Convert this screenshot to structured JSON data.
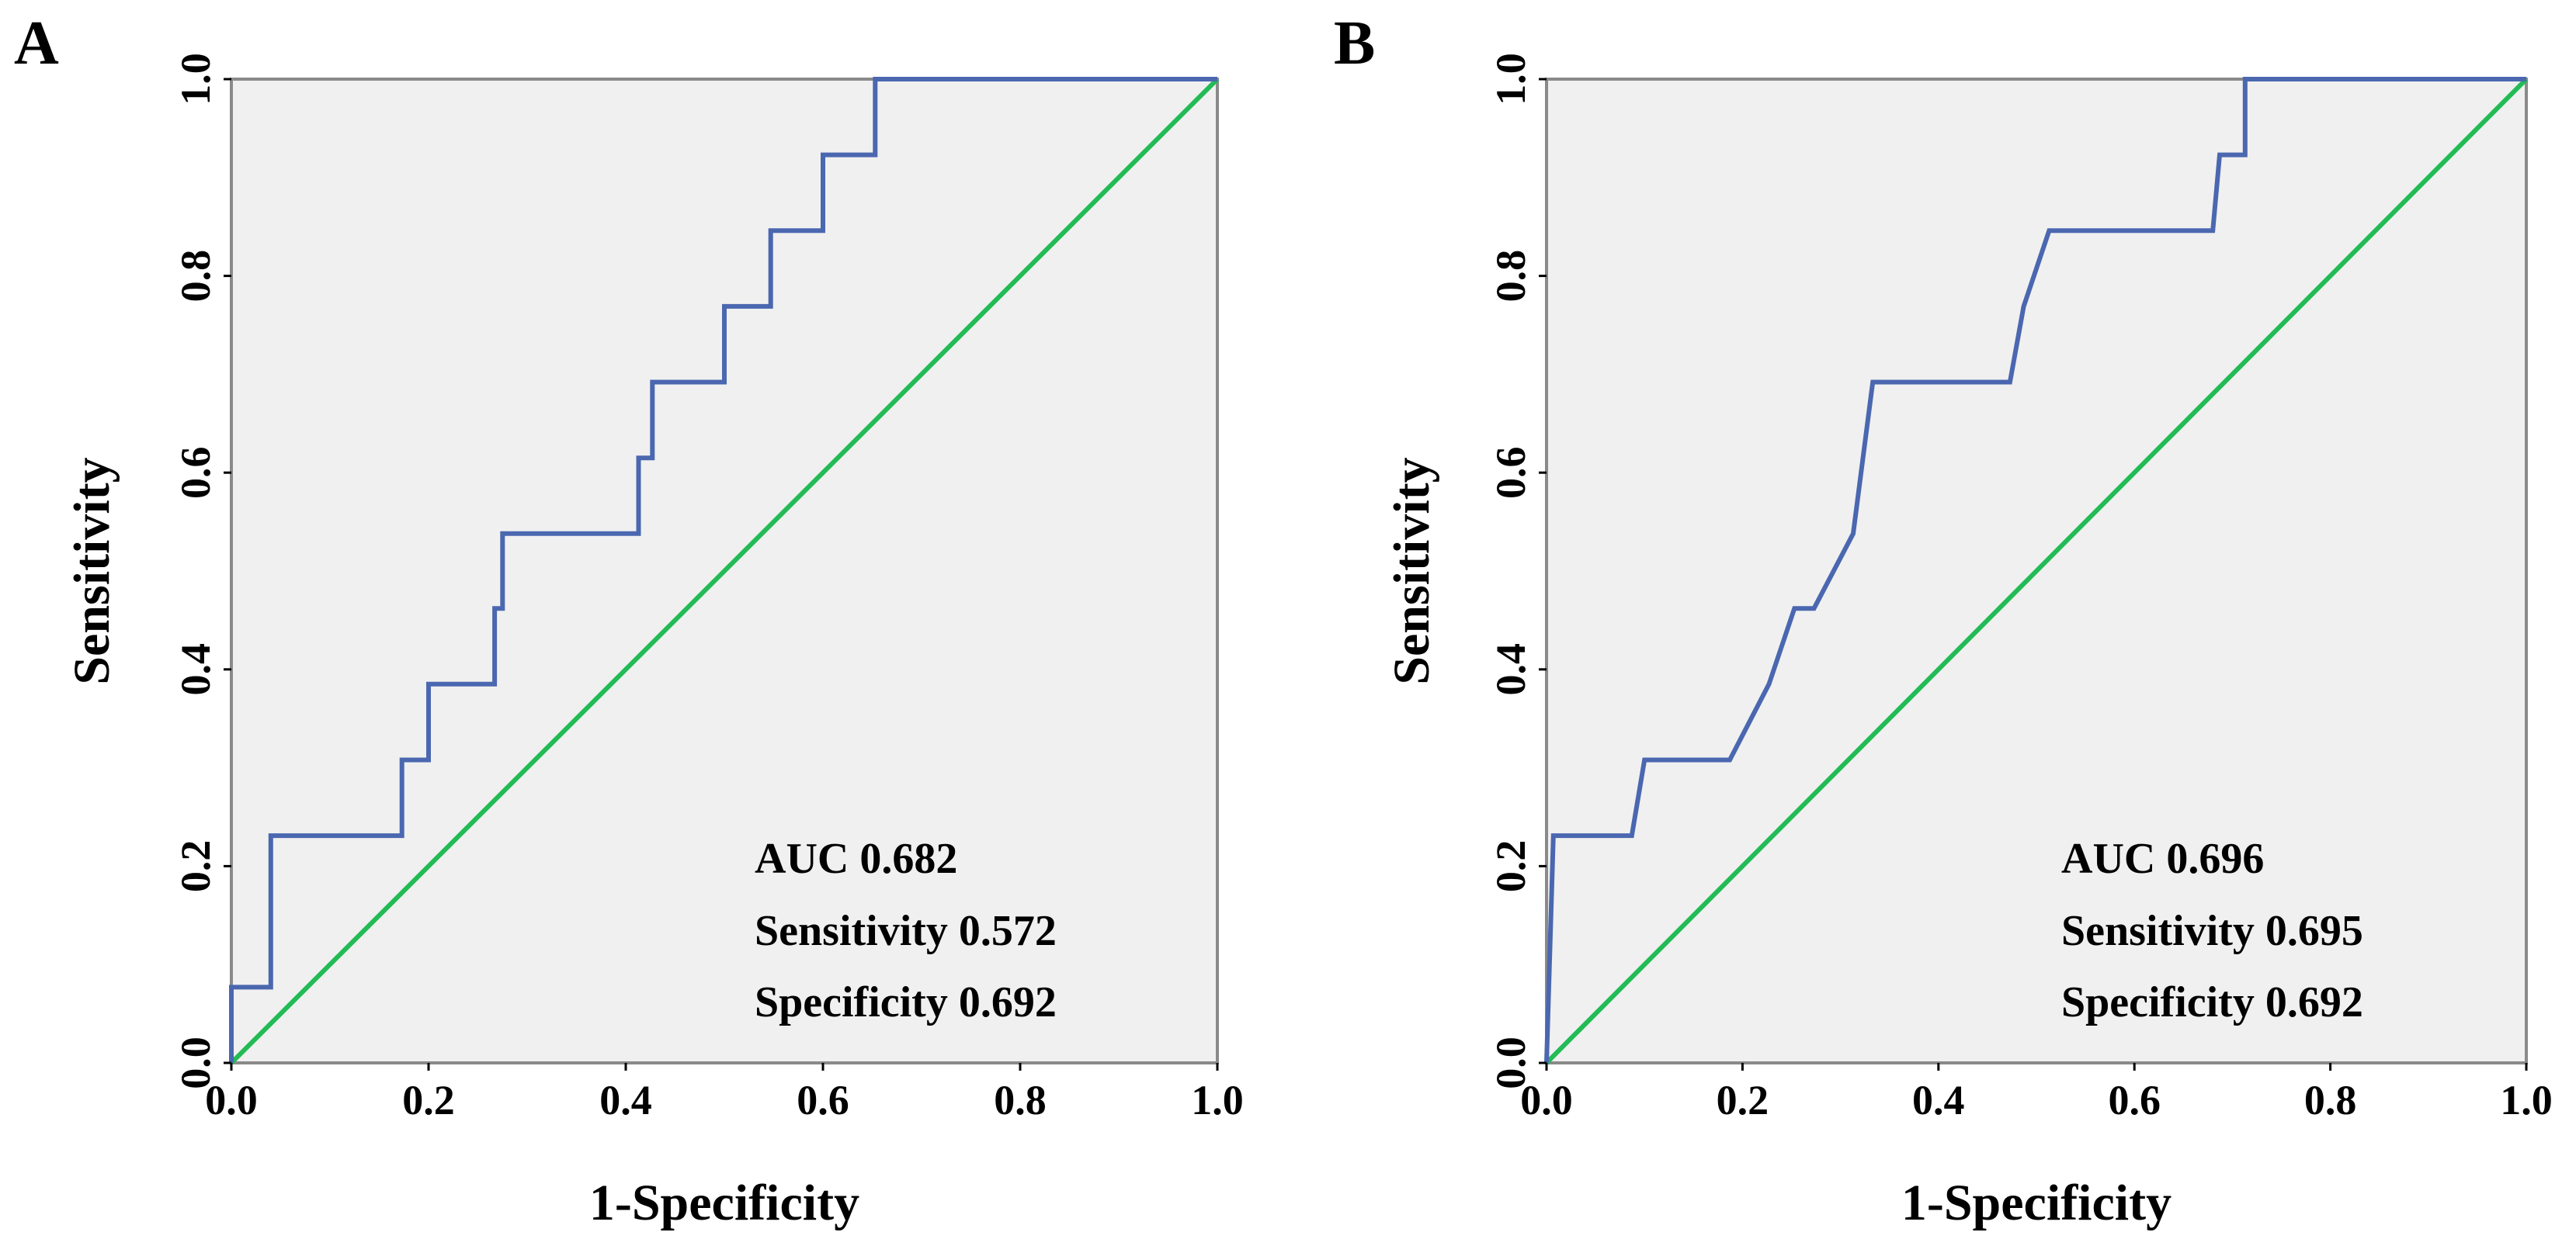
{
  "chart_data": [
    {
      "type": "line",
      "panel_label": "A",
      "xlabel": "1-Specificity",
      "ylabel": "Sensitivity",
      "xlim": [
        0,
        1
      ],
      "ylim": [
        0,
        1
      ],
      "x_ticks": [
        "0.0",
        "0.2",
        "0.4",
        "0.6",
        "0.8",
        "1.0"
      ],
      "y_ticks": [
        "0.0",
        "0.2",
        "0.4",
        "0.6",
        "0.8",
        "1.0"
      ],
      "series": [
        {
          "name": "ROC curve",
          "color": "#4a67b0",
          "x": [
            0.0,
            0.0,
            0.04,
            0.04,
            0.173,
            0.173,
            0.2,
            0.2,
            0.267,
            0.267,
            0.275,
            0.275,
            0.413,
            0.413,
            0.427,
            0.427,
            0.5,
            0.5,
            0.547,
            0.547,
            0.6,
            0.6,
            0.653,
            0.653,
            1.0
          ],
          "y": [
            0.0,
            0.077,
            0.077,
            0.231,
            0.231,
            0.308,
            0.308,
            0.385,
            0.385,
            0.462,
            0.462,
            0.538,
            0.538,
            0.615,
            0.615,
            0.692,
            0.692,
            0.769,
            0.769,
            0.846,
            0.846,
            0.923,
            0.923,
            1.0,
            1.0
          ]
        },
        {
          "name": "Reference line",
          "color": "#22bb55",
          "x": [
            0,
            1
          ],
          "y": [
            0,
            1
          ]
        }
      ],
      "annotations": [
        {
          "label": "AUC",
          "value": "0.682"
        },
        {
          "label": "Sensitivity",
          "value": "0.572"
        },
        {
          "label": "Specificity",
          "value": "0.692"
        }
      ]
    },
    {
      "type": "line",
      "panel_label": "B",
      "xlabel": "1-Specificity",
      "ylabel": "Sensitivity",
      "xlim": [
        0,
        1
      ],
      "ylim": [
        0,
        1
      ],
      "x_ticks": [
        "0.0",
        "0.2",
        "0.4",
        "0.6",
        "0.8",
        "1.0"
      ],
      "y_ticks": [
        "0.0",
        "0.2",
        "0.4",
        "0.6",
        "0.8",
        "1.0"
      ],
      "series": [
        {
          "name": "ROC curve",
          "color": "#4a67b0",
          "x": [
            0.0,
            0.007,
            0.087,
            0.1,
            0.187,
            0.227,
            0.253,
            0.273,
            0.313,
            0.333,
            0.473,
            0.487,
            0.513,
            0.68,
            0.687,
            0.713,
            0.713,
            1.0
          ],
          "y": [
            0.0,
            0.231,
            0.231,
            0.308,
            0.308,
            0.385,
            0.462,
            0.462,
            0.538,
            0.692,
            0.692,
            0.769,
            0.846,
            0.846,
            0.923,
            0.923,
            1.0,
            1.0
          ]
        },
        {
          "name": "Reference line",
          "color": "#22bb55",
          "x": [
            0,
            1
          ],
          "y": [
            0,
            1
          ]
        }
      ],
      "annotations": [
        {
          "label": "AUC",
          "value": "0.696"
        },
        {
          "label": "Sensitivity",
          "value": "0.695"
        },
        {
          "label": "Specificity",
          "value": "0.692"
        }
      ]
    }
  ]
}
